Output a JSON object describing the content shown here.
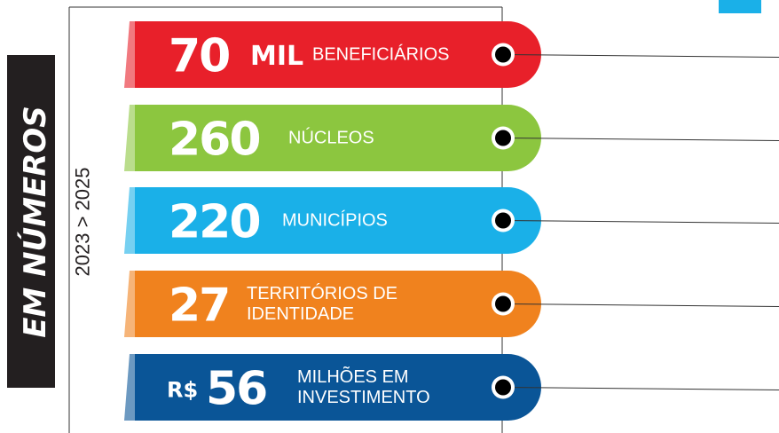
{
  "side_label": {
    "title": "EM NÚMEROS",
    "period": "2023 > 2025"
  },
  "stats": [
    {
      "number": 70,
      "unit": "MIL",
      "label_lines": [
        "BENEFICIÁRIOS"
      ],
      "color": "#e8202a"
    },
    {
      "number": 260,
      "label_lines": [
        "NÚCLEOS"
      ],
      "color": "#8cc63f"
    },
    {
      "number": 220,
      "label_lines": [
        "MUNICÍPIOS"
      ],
      "color": "#1ab0e8"
    },
    {
      "number": 27,
      "label_lines": [
        "TERRITÓRIOS DE",
        "IDENTIDADE"
      ],
      "color": "#f0821e"
    },
    {
      "prefix": "R$",
      "number": 56,
      "label_lines": [
        "MILHÕES EM",
        "INVESTIMENTO"
      ],
      "color": "#0a5597"
    }
  ]
}
